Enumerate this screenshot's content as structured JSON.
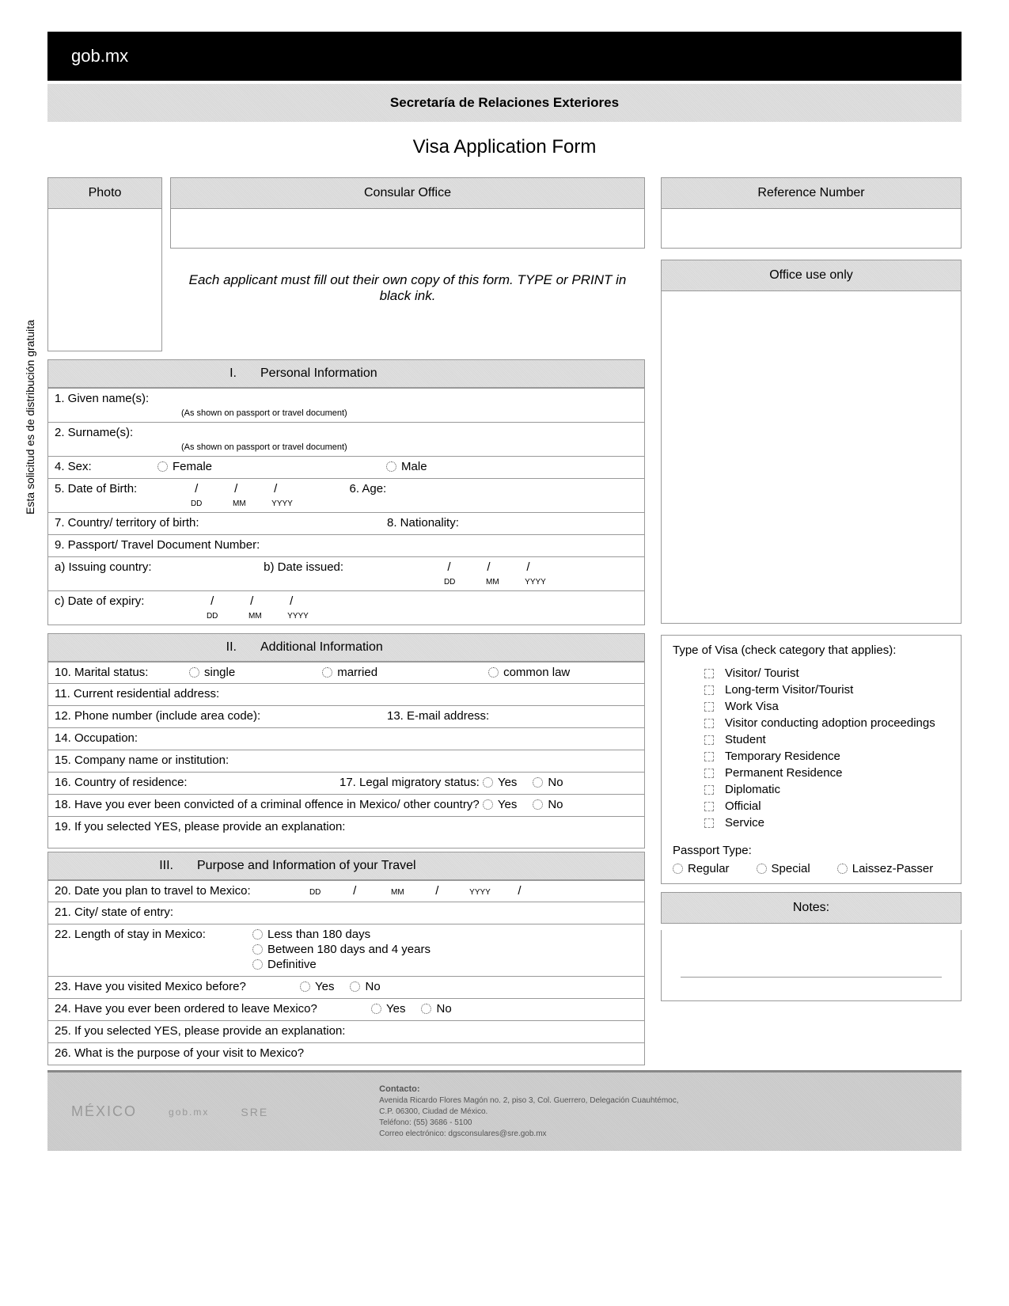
{
  "header": {
    "logo": "gob.mx",
    "dept": "Secretaría de Relaciones Exteriores",
    "title": "Visa Application Form"
  },
  "boxes": {
    "photo": "Photo",
    "consular": "Consular Office",
    "reference": "Reference Number",
    "office": "Office use only",
    "notes": "Notes:"
  },
  "instruction": "Each applicant must fill out their own copy of this form. TYPE or PRINT in black ink.",
  "vertical": "Esta solicitud es de distribución gratuita",
  "sections": {
    "s1": {
      "num": "I.",
      "title": "Personal Information"
    },
    "s2": {
      "num": "II.",
      "title": "Additional Information"
    },
    "s3": {
      "num": "III.",
      "title": "Purpose and Information of your Travel"
    }
  },
  "fields": {
    "given": "1. Given name(s):",
    "givenHint": "(As shown on passport or travel document)",
    "surname": "2. Surname(s):",
    "surnameHint": "(As shown on passport or travel document)",
    "sex": "4. Sex:",
    "female": "Female",
    "male": "Male",
    "dob": "5. Date of Birth:",
    "age": "6. Age:",
    "dd": "DD",
    "mm": "MM",
    "yyyy": "YYYY",
    "cob": "7. Country/ territory of birth:",
    "nat": "8. Nationality:",
    "passport": "9. Passport/ Travel Document Number:",
    "issCountry": "a) Issuing country:",
    "dateIssued": "b) Date issued:",
    "expiry": "c) Date of expiry:",
    "marital": "10. Marital status:",
    "single": "single",
    "married": "married",
    "common": "common law",
    "address": "11. Current residential address:",
    "phone": "12. Phone number (include area code):",
    "email": "13. E-mail address:",
    "occupation": "14. Occupation:",
    "company": "15. Company name or institution:",
    "residence": "16. Country of residence:",
    "legal": "17. Legal migratory status:",
    "yes": "Yes",
    "no": "No",
    "convicted": "18. Have you ever been convicted of a criminal offence in Mexico/ other country?",
    "explain": "19. If you selected YES, please provide an explanation:",
    "travelDate": "20. Date you plan to travel to Mexico:",
    "entryCity": "21. City/ state of entry:",
    "length": "22. Length of stay in Mexico:",
    "len1": "Less than 180 days",
    "len2": "Between 180 days and 4 years",
    "len3": "Definitive",
    "visited": "23. Have you visited Mexico before?",
    "ordered": "24. Have you ever been ordered to leave Mexico?",
    "explain2": "25. If you selected YES, please provide an explanation:",
    "purpose": "26. What is the purpose of your visit to Mexico?"
  },
  "visa": {
    "heading": "Type of Visa (check category that applies):",
    "items": [
      "Visitor/ Tourist",
      "Long-term Visitor/Tourist",
      "Work Visa",
      "Visitor conducting adoption proceedings",
      "Student",
      "Temporary Residence",
      "Permanent Residence",
      "Diplomatic",
      "Official",
      "Service"
    ],
    "passportType": "Passport Type:",
    "regular": "Regular",
    "special": "Special",
    "laissez": "Laissez-Passer"
  },
  "footer": {
    "mexico": "MÉXICO",
    "contact": "Contacto:",
    "line1": "Avenida Ricardo Flores Magón no. 2, piso 3, Col. Guerrero, Delegación Cuauhtémoc,",
    "line2": "C.P. 06300, Ciudad de México.",
    "line3": "Teléfono: (55) 3686 - 5100",
    "line4": "Correo electrónico: dgsconsulares@sre.gob.mx"
  }
}
